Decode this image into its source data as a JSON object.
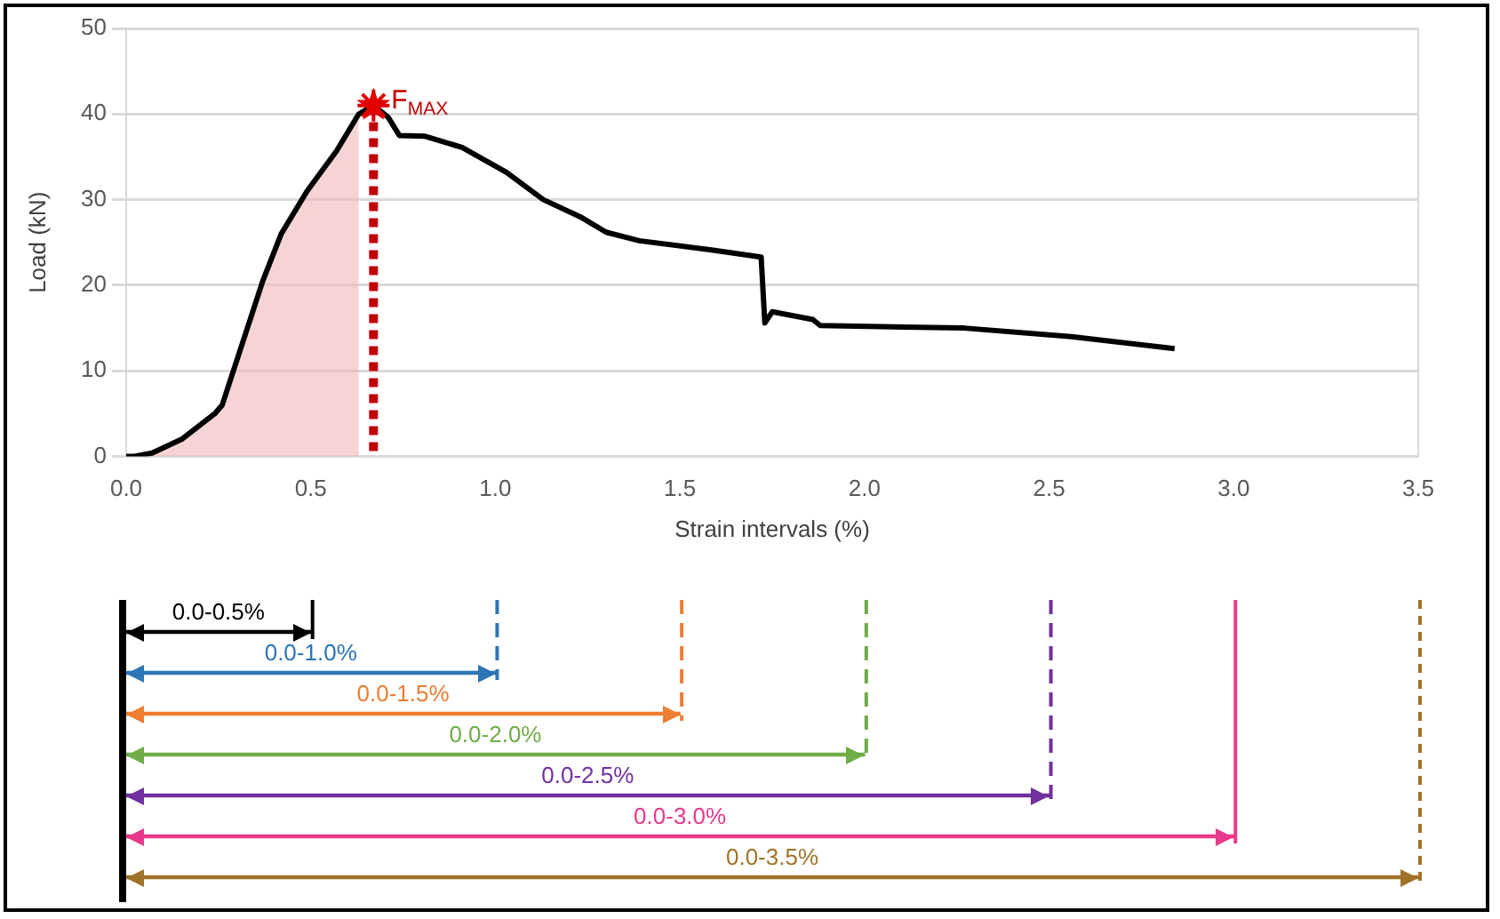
{
  "chart_data": [
    {
      "type": "line",
      "xlabel": "Strain intervals (%)",
      "ylabel": "Load (kN)",
      "xlim": [
        0,
        3.5
      ],
      "xticks": [
        {
          "value": 0,
          "label": "0.0"
        },
        0.5,
        {
          "value": 1,
          "label": "1.0"
        },
        1.5,
        {
          "value": 2,
          "label": "2.0"
        },
        2.5,
        {
          "value": 3,
          "label": "3.0"
        },
        3.5
      ],
      "ylim": [
        0,
        50
      ],
      "yticks": [
        0,
        10,
        20,
        30,
        40,
        50
      ],
      "grid": "y",
      "legend": false,
      "series": [
        {
          "type": "area",
          "color": "#f2b8b8",
          "x": [
            0,
            0.02,
            0.07,
            0.15,
            0.24,
            0.26,
            0.37,
            0.42,
            0.49,
            0.57,
            0.63
          ],
          "values": [
            0,
            0,
            0.4,
            2,
            5,
            6,
            20.5,
            26,
            31,
            35.7,
            40
          ]
        },
        {
          "type": "line",
          "color": "#000000",
          "marker": "none",
          "x": [
            0,
            0.02,
            0.07,
            0.15,
            0.24,
            0.26,
            0.37,
            0.42,
            0.49,
            0.57,
            0.63,
            0.67,
            0.71,
            0.74,
            0.81,
            0.91,
            1.03,
            1.13,
            1.23,
            1.3,
            1.39,
            1.59,
            1.72,
            1.73,
            1.75,
            1.86,
            1.88,
            2.27,
            2.56,
            2.84
          ],
          "values": [
            0,
            0,
            0.4,
            2,
            5,
            6,
            20.5,
            26,
            31,
            35.7,
            40,
            41,
            39.6,
            37.5,
            37.4,
            36.1,
            33.2,
            30,
            28,
            26.2,
            25.2,
            24.1,
            23.3,
            15.6,
            16.9,
            16,
            15.3,
            15,
            14,
            12.6
          ]
        },
        {
          "type": "scatter",
          "color": "#e00000",
          "marker": "star",
          "x": [
            0.67
          ],
          "values": [
            41
          ]
        }
      ],
      "ref_lines": [
        {
          "axis": "x",
          "value": 0.67,
          "label": "F$_{MAX}$",
          "color": "#c00000",
          "line_style": "dotted"
        }
      ]
    },
    {
      "type": "bar",
      "orientation": "horizontal",
      "categories": [
        "0.0-0.5%",
        "0.0-1.0%",
        "0.0-1.5%",
        "0.0-2.0%",
        "0.0-2.5%",
        "0.0-3.0%",
        "0.0-3.5%"
      ],
      "values": [
        0.5,
        1.0,
        1.5,
        2.0,
        2.5,
        3.0,
        3.5
      ],
      "colors": [
        "#000000",
        "#2e75b6",
        "#ed7d31",
        "#70ad47",
        "#7030a0",
        "#e8398c",
        "#a0732a"
      ],
      "xlim": [
        0,
        3.5
      ],
      "tick_labels": "y",
      "ref_lines": [
        {
          "axis": "x",
          "value": 0.5,
          "color": "#000000",
          "line_style": "solid"
        },
        {
          "axis": "x",
          "value": 1.0,
          "color": "#2e75b6",
          "line_style": "dashed"
        },
        {
          "axis": "x",
          "value": 1.5,
          "color": "#ed7d31",
          "line_style": "dashed"
        },
        {
          "axis": "x",
          "value": 2.0,
          "color": "#70ad47",
          "line_style": "dashed"
        },
        {
          "axis": "x",
          "value": 2.5,
          "color": "#7030a0",
          "line_style": "dashed"
        },
        {
          "axis": "x",
          "value": 3.0,
          "color": "#e8398c",
          "line_style": "solid"
        },
        {
          "axis": "x",
          "value": 3.5,
          "color": "#a0732a",
          "line_style": "dotted"
        }
      ]
    }
  ]
}
